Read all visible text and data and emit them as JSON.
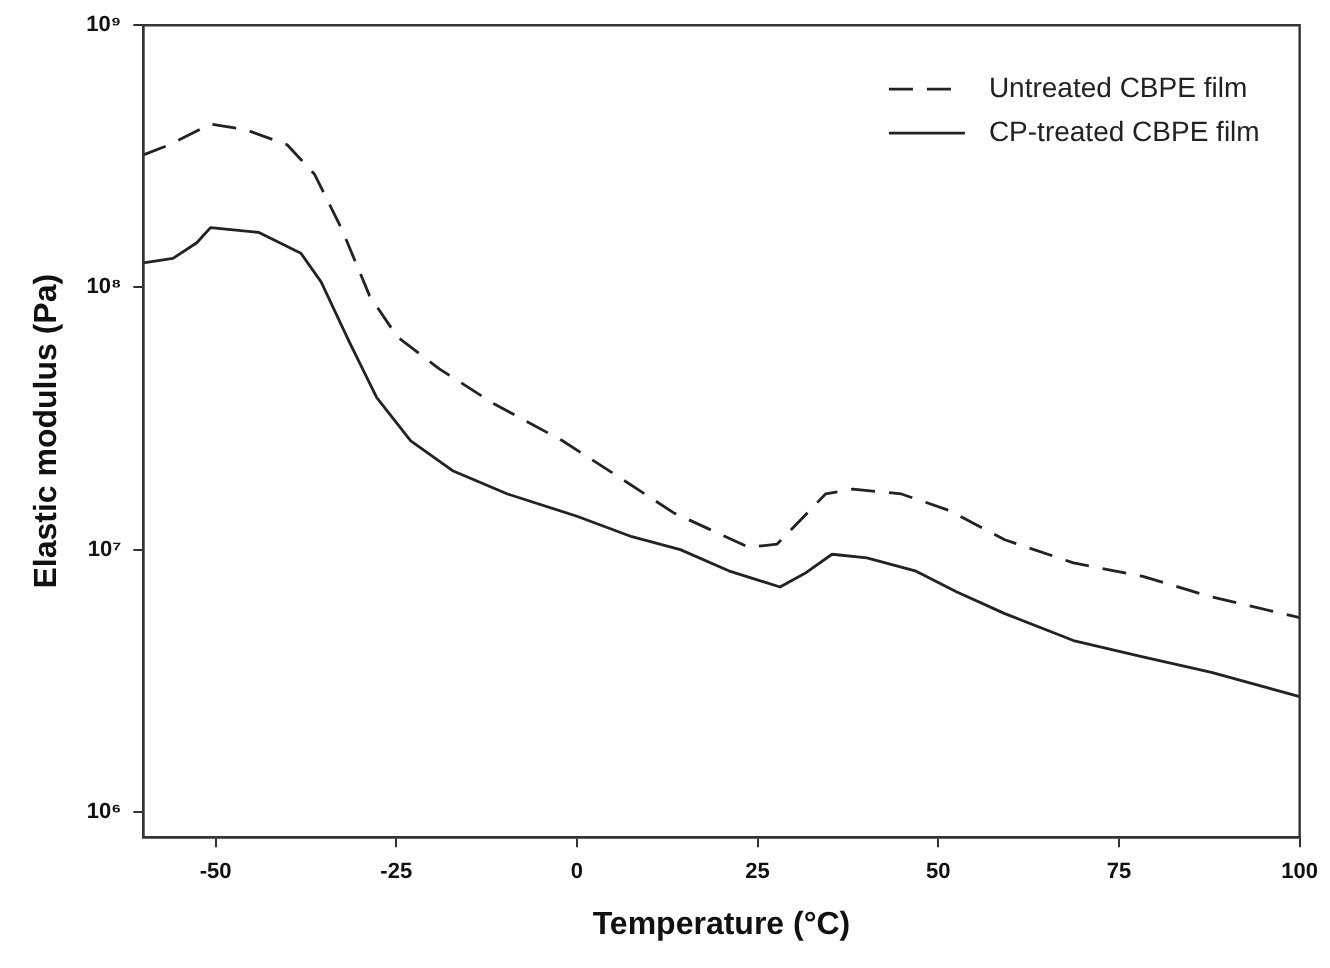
{
  "chart_data": {
    "type": "line",
    "xlabel": "Temperature (°C)",
    "ylabel": "Elastic modulus (Pa)",
    "xlim": [
      -60,
      100
    ],
    "xticks": [
      -50,
      -25,
      0,
      25,
      50,
      75,
      100
    ],
    "ylim": [
      800000,
      1000000000
    ],
    "yticks": [
      {
        "value": 1000000,
        "label": "10⁶"
      },
      {
        "value": 10000000,
        "label": "10⁷"
      },
      {
        "value": 100000000,
        "label": "10⁸"
      },
      {
        "value": 1000000000,
        "label": "10⁹"
      }
    ],
    "log": "y",
    "grid": false,
    "legend": "top right",
    "marker": "none",
    "series": [
      {
        "name": "Untreated CBPE film",
        "color": "#222222",
        "line_style": "dashed",
        "x": [
          -60,
          -56.4,
          -50.7,
          -45.9,
          -40.1,
          -36.3,
          -32.5,
          -28.7,
          -24.9,
          -19.1,
          -11.5,
          -2,
          5.7,
          13.4,
          23.8,
          27.7,
          30.5,
          34.4,
          38.2,
          44.9,
          51.5,
          59.2,
          68.7,
          78.3,
          87.8,
          100
        ],
        "values": [
          320000000,
          350000000,
          420000000,
          400000000,
          350000000,
          270000000,
          166000000,
          93000000,
          65000000,
          49000000,
          36000000,
          26000000,
          19000000,
          13800000,
          10200000,
          10500000,
          12600000,
          16300000,
          17000000,
          16300000,
          14100000,
          10900000,
          8900000,
          7900000,
          6600000,
          5500000
        ]
      },
      {
        "name": "CP-treated CBPE film",
        "color": "#222222",
        "line_style": "solid",
        "x": [
          -60,
          -55.9,
          -52.6,
          -50.7,
          -44,
          -38.2,
          -35.4,
          -31.5,
          -27.7,
          -23,
          -17.2,
          -9.6,
          0,
          7.6,
          14.3,
          21,
          28.1,
          31.5,
          35.3,
          40.1,
          46.8,
          52.5,
          59.2,
          68.7,
          78.3,
          87.8,
          100
        ],
        "values": [
          124000000,
          129000000,
          148000000,
          169000000,
          162000000,
          135000000,
          105000000,
          62000000,
          38000000,
          26000000,
          20000000,
          16300000,
          13400000,
          11200000,
          10000000,
          8300000,
          7200000,
          8100000,
          9600000,
          9300000,
          8300000,
          6900000,
          5700000,
          4500000,
          3900000,
          3400000,
          2750000
        ]
      }
    ]
  }
}
